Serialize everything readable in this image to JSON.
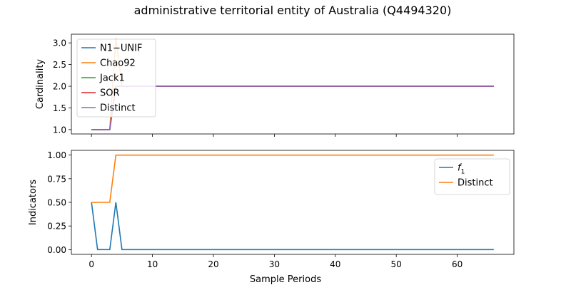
{
  "figure": {
    "title": "administrative territorial entity of Australia (Q4494320)"
  },
  "chart_data": [
    {
      "type": "line",
      "ylabel": "Cardinality",
      "xlabel": "",
      "xlim": [
        -3.3,
        69.3
      ],
      "ylim": [
        0.9,
        3.2
      ],
      "xticks": [
        0,
        10,
        20,
        30,
        40,
        50,
        60
      ],
      "xtick_labels_visible": false,
      "yticks": [
        1.0,
        1.5,
        2.0,
        2.5,
        3.0
      ],
      "ytick_labels": [
        "1.0",
        "1.5",
        "2.0",
        "2.5",
        "3.0"
      ],
      "legend_position": "upper-left",
      "x_end": 66,
      "series": [
        {
          "name": "N1−UNIF",
          "color": "#1f77b4",
          "points": [
            [
              0,
              1
            ],
            [
              3,
              1
            ],
            [
              4,
              2
            ],
            [
              66,
              2
            ]
          ]
        },
        {
          "name": "Chao92",
          "color": "#ff7f0e",
          "points": [
            [
              0,
              1
            ],
            [
              3,
              1
            ],
            [
              4,
              3.1
            ],
            [
              5,
              2
            ],
            [
              66,
              2
            ]
          ]
        },
        {
          "name": "Jack1",
          "color": "#2ca02c",
          "points": [
            [
              0,
              1
            ],
            [
              3,
              1
            ],
            [
              4,
              2
            ],
            [
              66,
              2
            ]
          ]
        },
        {
          "name": "SOR",
          "color": "#d62728",
          "points": [
            [
              0,
              1
            ],
            [
              3,
              1
            ],
            [
              4,
              2
            ],
            [
              66,
              2
            ]
          ]
        },
        {
          "name": "Distinct",
          "color": "#9467bd",
          "points": [
            [
              0,
              1
            ],
            [
              3,
              1
            ],
            [
              4,
              2
            ],
            [
              66,
              2
            ]
          ]
        }
      ]
    },
    {
      "type": "line",
      "ylabel": "Indicators",
      "xlabel": "Sample Periods",
      "xlim": [
        -3.3,
        69.3
      ],
      "ylim": [
        -0.05,
        1.05
      ],
      "xticks": [
        0,
        10,
        20,
        30,
        40,
        50,
        60
      ],
      "xtick_labels": [
        "0",
        "10",
        "20",
        "30",
        "40",
        "50",
        "60"
      ],
      "yticks": [
        0.0,
        0.25,
        0.5,
        0.75,
        1.0
      ],
      "ytick_labels": [
        "0.00",
        "0.25",
        "0.50",
        "0.75",
        "1.00"
      ],
      "legend_position": "upper-right",
      "series": [
        {
          "name": "f1",
          "color": "#1f77b4",
          "points": [
            [
              0,
              0.5
            ],
            [
              1,
              0
            ],
            [
              3,
              0
            ],
            [
              4,
              0.5
            ],
            [
              5,
              0
            ],
            [
              66,
              0
            ]
          ]
        },
        {
          "name": "Distinct",
          "color": "#ff7f0e",
          "points": [
            [
              0,
              0.5
            ],
            [
              3,
              0.5
            ],
            [
              4,
              1
            ],
            [
              66,
              1
            ]
          ]
        }
      ]
    }
  ]
}
